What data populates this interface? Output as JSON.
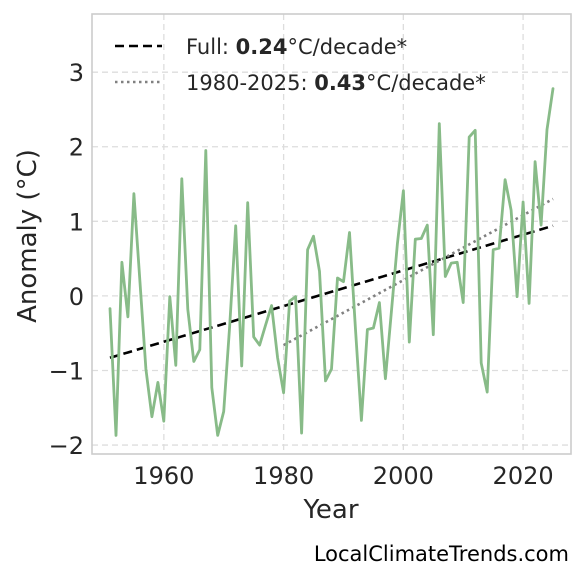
{
  "chart_data": {
    "type": "line",
    "title": "",
    "xlabel": "Year",
    "ylabel": "Anomaly (°C)",
    "xlim": [
      1948,
      2028
    ],
    "ylim": [
      -2.12,
      3.78
    ],
    "xticks": [
      1960,
      1980,
      2000,
      2020
    ],
    "yticks": [
      -2,
      -1,
      0,
      1,
      2,
      3
    ],
    "xtick_labels": [
      "1960",
      "1980",
      "2000",
      "2020"
    ],
    "ytick_labels": [
      "−2",
      "−1",
      "0",
      "1",
      "2",
      "3"
    ],
    "grid": true,
    "legend_position": "top-left",
    "colors": {
      "series": "#88bb88",
      "full_trend": "#000000",
      "recent_trend": "#808080",
      "grid": "#dddddd",
      "frame": "#cccccc"
    },
    "series": [
      {
        "x": [
          1951,
          1952,
          1953,
          1954,
          1955,
          1956,
          1957,
          1958,
          1959,
          1960,
          1961,
          1962,
          1963,
          1964,
          1965,
          1966,
          1967,
          1968,
          1969,
          1970,
          1971,
          1972,
          1973,
          1974,
          1975,
          1976,
          1977,
          1978,
          1979,
          1980,
          1981,
          1982,
          1983,
          1984,
          1985,
          1986,
          1987,
          1988,
          1989,
          1990,
          1991,
          1992,
          1993,
          1994,
          1995,
          1996,
          1997,
          1998,
          1999,
          2000,
          2001,
          2002,
          2003,
          2004,
          2005,
          2006,
          2007,
          2008,
          2009,
          2010,
          2011,
          2012,
          2013,
          2014,
          2015,
          2016,
          2017,
          2018,
          2019,
          2020,
          2021,
          2022,
          2023,
          2024,
          2025
        ],
        "values": [
          -0.17,
          -1.87,
          0.45,
          -0.28,
          1.37,
          0.2,
          -0.98,
          -1.62,
          -1.16,
          -1.68,
          -0.01,
          -0.93,
          1.57,
          -0.18,
          -0.88,
          -0.72,
          1.95,
          -1.23,
          -1.87,
          -1.55,
          -0.4,
          0.94,
          -0.94,
          1.25,
          -0.55,
          -0.66,
          -0.39,
          -0.13,
          -0.83,
          -1.3,
          -0.07,
          -0.01,
          -1.84,
          0.62,
          0.8,
          0.33,
          -1.14,
          -0.98,
          0.24,
          0.19,
          0.85,
          -0.45,
          -1.67,
          -0.45,
          -0.43,
          -0.09,
          -1.11,
          -0.21,
          0.7,
          1.41,
          -0.62,
          0.76,
          0.77,
          0.95,
          -0.52,
          2.31,
          0.26,
          0.44,
          0.45,
          -0.09,
          2.13,
          2.22,
          -0.9,
          -1.29,
          0.62,
          0.64,
          1.56,
          1.15,
          -0.01,
          1.26,
          -0.1,
          1.8,
          0.95,
          2.23,
          2.78
        ]
      }
    ],
    "trend_lines": [
      {
        "name": "Full",
        "rate": "0.24",
        "unit": "°C/decade*",
        "x": [
          1951,
          2025
        ],
        "y": [
          -0.83,
          0.94
        ]
      },
      {
        "name": "1980-2025",
        "rate": "0.43",
        "unit": "°C/decade*",
        "x": [
          1980,
          2025
        ],
        "y": [
          -0.66,
          1.3
        ]
      }
    ],
    "legend": {
      "entries": [
        {
          "label": "Full: ",
          "value": "0.24",
          "unit": "°C/decade*"
        },
        {
          "label": "1980-2025: ",
          "value": "0.43",
          "unit": "°C/decade*"
        }
      ]
    }
  },
  "watermark": "LocalClimateTrends.com"
}
